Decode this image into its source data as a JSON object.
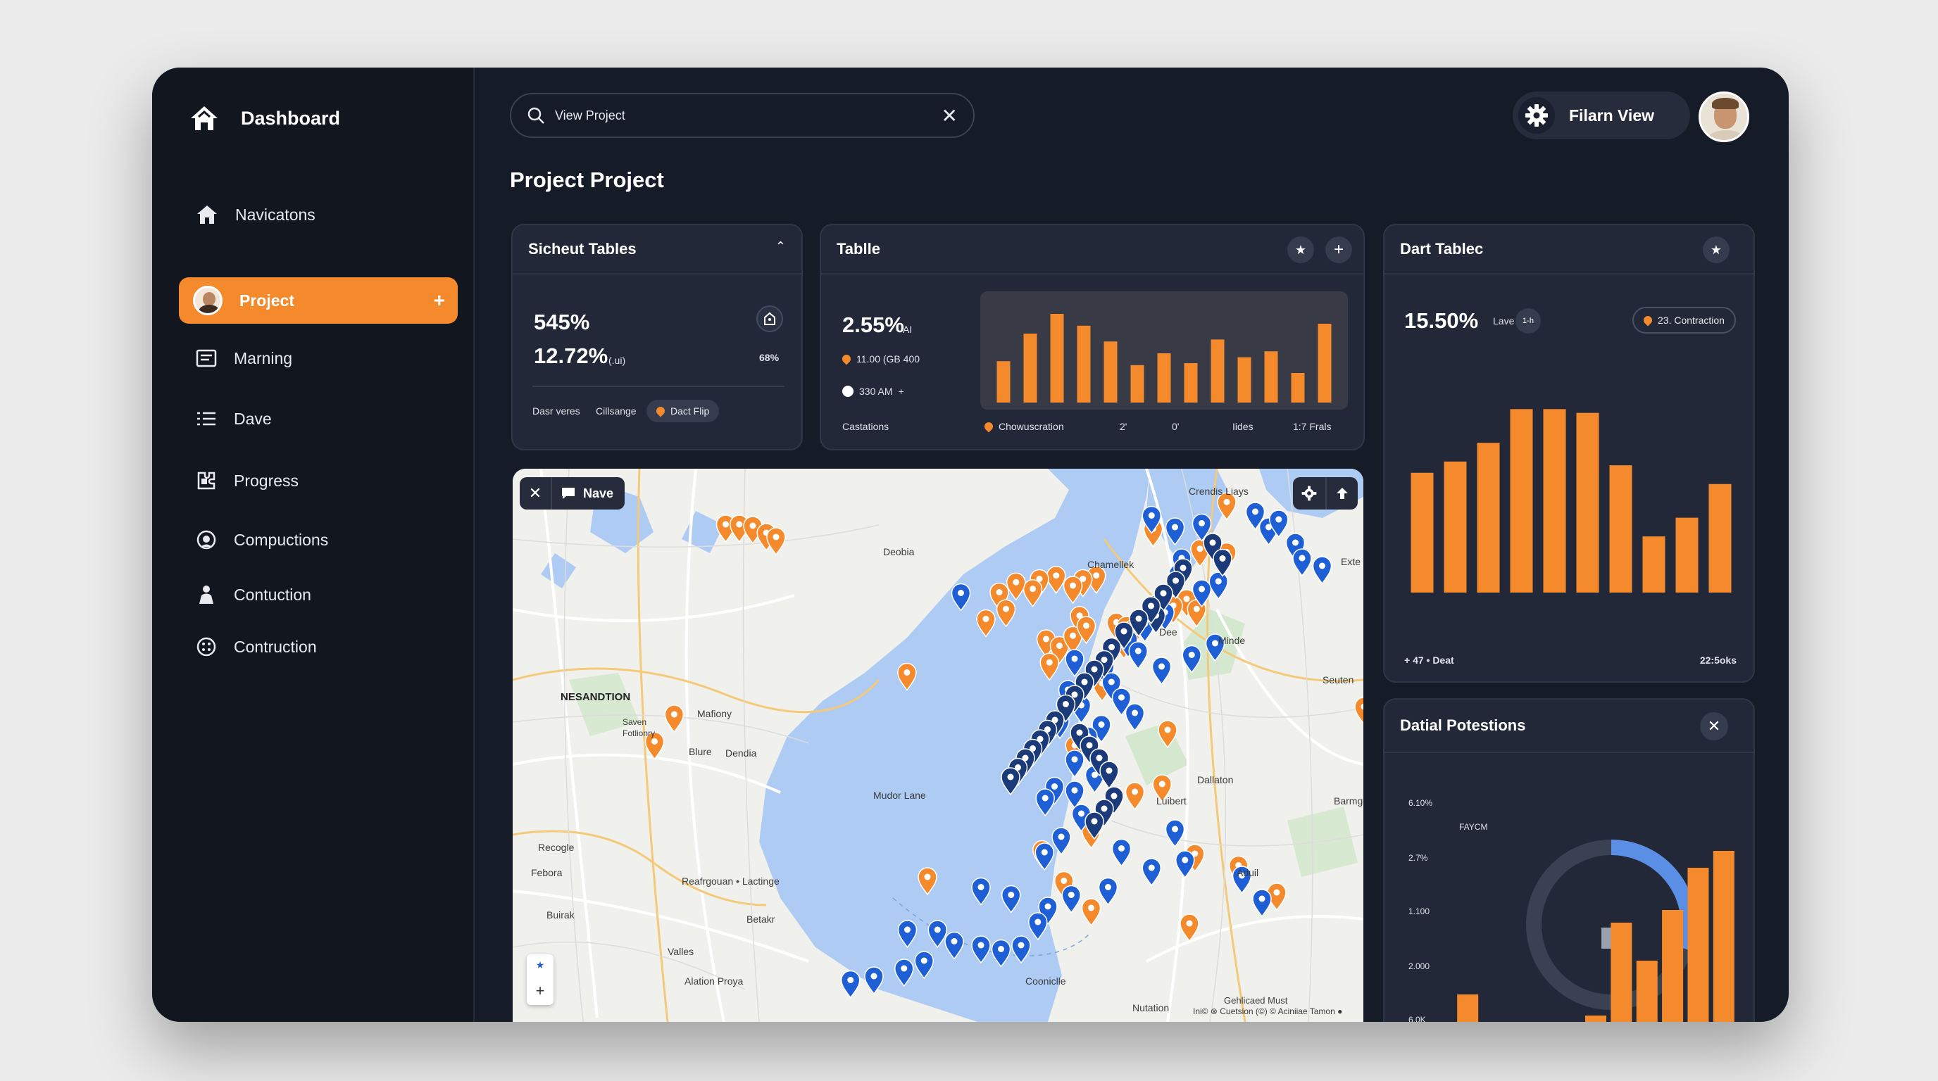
{
  "sidebar": {
    "title": "Dashboard",
    "items": [
      {
        "label": "Navicatons",
        "icon": "home-icon"
      },
      {
        "label": "Project",
        "icon": "avatar"
      },
      {
        "label": "Marning",
        "icon": "document-icon"
      },
      {
        "label": "Dave",
        "icon": "list-icon"
      },
      {
        "label": "Progress",
        "icon": "puzzle-icon"
      },
      {
        "label": "Compuctions",
        "icon": "face-icon"
      },
      {
        "label": "Contuction",
        "icon": "person-icon"
      },
      {
        "label": "Contruction",
        "icon": "grid-circle-icon"
      }
    ],
    "add_label": "+"
  },
  "header": {
    "search_value": "View Project",
    "view_label": "Filarn View"
  },
  "page": {
    "title": "Project Project"
  },
  "cards": {
    "c1": {
      "title": "Sicheut Tables",
      "value1": "545%",
      "value2": "12.72%",
      "value2_unit": "(.ui)",
      "side_badge": "68%",
      "footer": [
        "Dasr veres",
        "Cillsange"
      ],
      "chip": "Dact Flip"
    },
    "c2": {
      "title": "Tablle",
      "value": "2.55%",
      "value_unit": "AI",
      "legend1": "11.00 (GB 400",
      "legend2": "330 AM",
      "legend2_plus": "+",
      "footer_left": "Castations",
      "x_labels": [
        "Chowuscration",
        "2'",
        "0'",
        "Iides",
        "1:7 Frals"
      ],
      "bars": [
        0.42,
        0.7,
        0.9,
        0.78,
        0.62,
        0.38,
        0.5,
        0.4,
        0.64,
        0.46,
        0.52,
        0.3,
        0.8
      ]
    },
    "c3": {
      "title": "Dart Tablec",
      "value": "15.50%",
      "tag": "Lave",
      "tag_badge": "1-h",
      "chip": "23. Contraction",
      "footer_left": "+ 47 • Deat",
      "footer_right": "22:5oks",
      "bars": [
        0.64,
        0.7,
        0.8,
        0.98,
        0.98,
        0.96,
        0.68,
        0.3,
        0.4,
        0.58
      ]
    },
    "c4": {
      "title": "Datial Potestions",
      "center_label": "FAYCM",
      "y_labels": [
        "6.10%",
        "2.7%",
        "1.100",
        "2.000",
        "6.0K"
      ],
      "bars": [
        0.22,
        0.08,
        0.0,
        0.0,
        0.0,
        0.12,
        0.56,
        0.38,
        0.62,
        0.82,
        0.9
      ],
      "gauge": 0.3,
      "corner": "1-"
    }
  },
  "map": {
    "toolbar_label": "Nave",
    "labels": [
      {
        "text": "Crendis Liays"
      },
      {
        "text": "Deobia"
      },
      {
        "text": "Chamellek"
      },
      {
        "text": "NESANDTION"
      },
      {
        "text": "Saven Fotlionry"
      },
      {
        "text": "Mafiony"
      },
      {
        "text": "Blure"
      },
      {
        "text": "Dendia"
      },
      {
        "text": "Mudor Lane"
      },
      {
        "text": "Dallaton"
      },
      {
        "text": "Luibert"
      },
      {
        "text": "Recogle"
      },
      {
        "text": "Febora"
      },
      {
        "text": "Reafrgouan • Lactinge"
      },
      {
        "text": "Buirak"
      },
      {
        "text": "Betakr"
      },
      {
        "text": "Valles"
      },
      {
        "text": "Alation Proya"
      },
      {
        "text": "Cooniclle"
      },
      {
        "text": "Nutation"
      },
      {
        "text": "Seuten"
      },
      {
        "text": "Exte"
      },
      {
        "text": "Minde"
      },
      {
        "text": "Barmgor"
      },
      {
        "text": "Aduil"
      },
      {
        "text": "Dee"
      }
    ],
    "attribution": "Gehlicaed Must",
    "attribution2": "Ini© ⊗ Cuetsion (©) © Aciniiae Tamon ●",
    "colors": {
      "orange": "#f58a2c",
      "blue": "#1f5fd6",
      "navy": "#1b3a7a"
    }
  },
  "colors": {
    "accent": "#f58a2c",
    "panel": "#222838",
    "bg": "#161b28"
  }
}
